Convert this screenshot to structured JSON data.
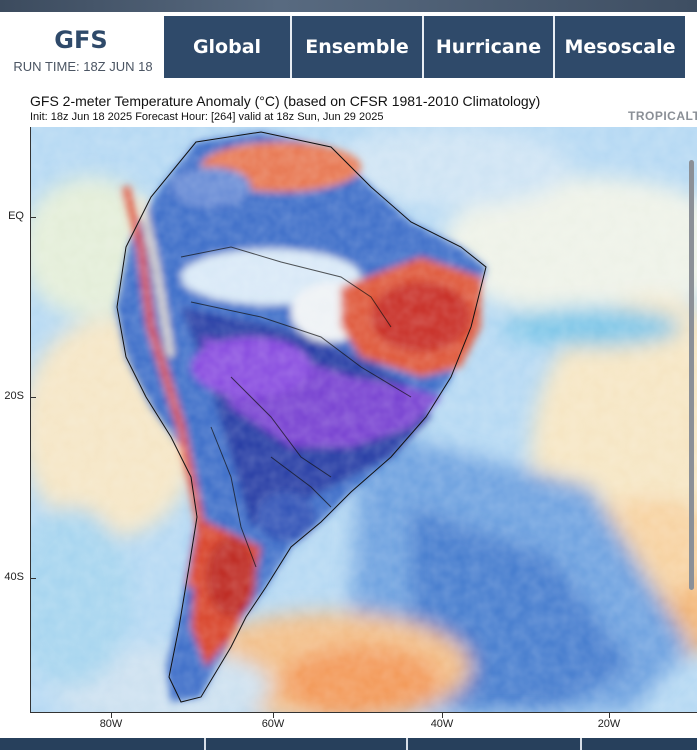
{
  "brand": {
    "title": "GFS",
    "run_time": "RUN TIME: 18Z JUN 18"
  },
  "nav": {
    "tabs": [
      {
        "label": "Global"
      },
      {
        "label": "Ensemble"
      },
      {
        "label": "Hurricane"
      },
      {
        "label": "Mesoscale"
      }
    ]
  },
  "map": {
    "title": "GFS 2-meter Temperature Anomaly (°C) (based on CFSR 1981-2010 Climatology)",
    "subtitle": "Init: 18z Jun 18 2025   Forecast Hour: [264]   valid at 18z Sun, Jun 29 2025",
    "badge": "TROPICALT",
    "y_ticks": [
      "EQ",
      "20S",
      "40S"
    ],
    "x_ticks": [
      "80W",
      "60W",
      "40W",
      "20W"
    ]
  },
  "colors": {
    "nav_bg": "#2f4a6a",
    "brand_text": "#2f4a6a",
    "anomaly_cold_extreme": "#7b3fd0",
    "anomaly_cold": "#2a4fb8",
    "anomaly_cool": "#7fb3e8",
    "anomaly_neutral": "#f2f2dc",
    "anomaly_warm": "#f4a35a",
    "anomaly_hot": "#d2332a"
  }
}
